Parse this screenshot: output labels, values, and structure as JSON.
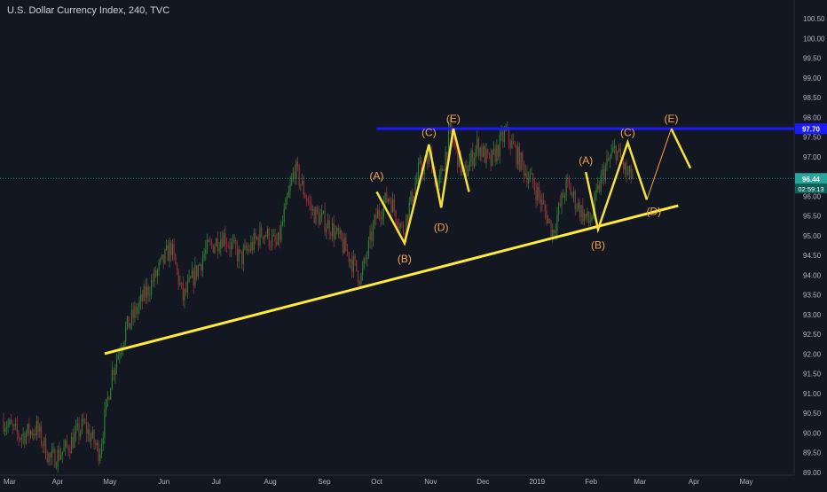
{
  "header": {
    "symbol_title": "U.S. Dollar Currency Index, 240, TVC"
  },
  "colors": {
    "background": "#131722",
    "candle_up": "#2e7d32",
    "candle_down": "#9b2c3a",
    "trendline": "#ffeb3b",
    "resistance": "#1a1aff",
    "wave": "#f5e13b",
    "wave_label": "#f7a24a",
    "current_price_line": "#26a69a",
    "axis_text": "#b2b5be"
  },
  "chart_data": {
    "type": "candlestick",
    "y_axis": {
      "ticks": [
        "89.00",
        "89.50",
        "90.00",
        "90.50",
        "91.00",
        "91.50",
        "92.00",
        "92.50",
        "93.00",
        "93.50",
        "94.00",
        "94.50",
        "95.00",
        "95.50",
        "96.00",
        "96.50",
        "97.00",
        "97.50",
        "98.00",
        "98.50",
        "99.00",
        "99.50",
        "100.00",
        "100.50"
      ],
      "ylim": [
        88.7,
        100.9
      ]
    },
    "x_axis": {
      "ticks": [
        "Mar",
        "Apr",
        "May",
        "Jun",
        "Jul",
        "Aug",
        "Sep",
        "Oct",
        "Nov",
        "Dec",
        "2019",
        "Feb",
        "Mar",
        "Apr",
        "May"
      ]
    },
    "price_path": [
      {
        "d": "2018-03-01",
        "v": 90.3
      },
      {
        "d": "2018-03-10",
        "v": 89.9
      },
      {
        "d": "2018-03-20",
        "v": 90.1
      },
      {
        "d": "2018-03-28",
        "v": 89.3
      },
      {
        "d": "2018-04-06",
        "v": 89.6
      },
      {
        "d": "2018-04-16",
        "v": 90.2
      },
      {
        "d": "2018-04-25",
        "v": 89.5
      },
      {
        "d": "2018-05-02",
        "v": 91.5
      },
      {
        "d": "2018-05-10",
        "v": 92.6
      },
      {
        "d": "2018-05-25",
        "v": 93.8
      },
      {
        "d": "2018-06-05",
        "v": 94.7
      },
      {
        "d": "2018-06-12",
        "v": 93.4
      },
      {
        "d": "2018-06-25",
        "v": 94.6
      },
      {
        "d": "2018-07-05",
        "v": 95.0
      },
      {
        "d": "2018-07-15",
        "v": 94.4
      },
      {
        "d": "2018-07-28",
        "v": 95.1
      },
      {
        "d": "2018-08-05",
        "v": 94.7
      },
      {
        "d": "2018-08-15",
        "v": 96.7
      },
      {
        "d": "2018-08-25",
        "v": 95.6
      },
      {
        "d": "2018-09-05",
        "v": 95.2
      },
      {
        "d": "2018-09-15",
        "v": 94.5
      },
      {
        "d": "2018-09-22",
        "v": 93.9
      },
      {
        "d": "2018-10-01",
        "v": 95.5
      },
      {
        "d": "2018-10-08",
        "v": 96.0
      },
      {
        "d": "2018-10-16",
        "v": 95.1
      },
      {
        "d": "2018-10-25",
        "v": 96.6
      },
      {
        "d": "2018-11-01",
        "v": 97.0
      },
      {
        "d": "2018-11-05",
        "v": 96.1
      },
      {
        "d": "2018-11-12",
        "v": 97.6
      },
      {
        "d": "2018-11-20",
        "v": 96.5
      },
      {
        "d": "2018-11-28",
        "v": 97.3
      },
      {
        "d": "2018-12-05",
        "v": 96.8
      },
      {
        "d": "2018-12-14",
        "v": 97.6
      },
      {
        "d": "2018-12-22",
        "v": 96.9
      },
      {
        "d": "2019-01-01",
        "v": 96.1
      },
      {
        "d": "2019-01-10",
        "v": 95.1
      },
      {
        "d": "2019-01-18",
        "v": 96.3
      },
      {
        "d": "2019-01-25",
        "v": 95.7
      },
      {
        "d": "2019-01-31",
        "v": 95.3
      },
      {
        "d": "2019-02-08",
        "v": 96.6
      },
      {
        "d": "2019-02-15",
        "v": 97.2
      },
      {
        "d": "2019-02-22",
        "v": 96.5
      }
    ],
    "current_price": {
      "value": 96.44,
      "label": "96.44",
      "countdown": "02:59:13"
    },
    "resistance_line": {
      "value": 97.7,
      "label": "97.70",
      "from": "2018-10-01",
      "to": "2019-05-21"
    },
    "trendline": {
      "from": {
        "d": "2018-04-28",
        "v": 92.0
      },
      "to": {
        "d": "2019-03-23",
        "v": 95.75
      }
    },
    "waves": [
      {
        "points": [
          {
            "d": "2018-10-01",
            "v": 96.1
          },
          {
            "d": "2018-10-17",
            "v": 94.8
          },
          {
            "d": "2018-10-31",
            "v": 97.3
          },
          {
            "d": "2018-11-07",
            "v": 95.7
          },
          {
            "d": "2018-11-14",
            "v": 97.7
          },
          {
            "d": "2018-11-23",
            "v": 96.1
          }
        ],
        "labels": [
          {
            "text": "(A)",
            "d": "2018-10-01",
            "v": 96.5
          },
          {
            "text": "(B)",
            "d": "2018-10-17",
            "v": 94.4
          },
          {
            "text": "(C)",
            "d": "2018-10-31",
            "v": 97.6
          },
          {
            "text": "(D)",
            "d": "2018-11-07",
            "v": 95.2
          },
          {
            "text": "(E)",
            "d": "2018-11-14",
            "v": 97.95
          }
        ]
      },
      {
        "points": [
          {
            "d": "2019-01-29",
            "v": 96.6
          },
          {
            "d": "2019-02-05",
            "v": 95.15
          },
          {
            "d": "2019-02-22",
            "v": 97.35
          },
          {
            "d": "2019-03-05",
            "v": 95.9
          }
        ],
        "labels": [
          {
            "text": "(A)",
            "d": "2019-01-29",
            "v": 96.9
          },
          {
            "text": "(B)",
            "d": "2019-02-05",
            "v": 94.75
          },
          {
            "text": "(C)",
            "d": "2019-02-22",
            "v": 97.6
          },
          {
            "text": "(D)",
            "d": "2019-03-09",
            "v": 95.6
          }
        ]
      },
      {
        "points": [
          {
            "d": "2019-03-19",
            "v": 97.7
          },
          {
            "d": "2019-03-30",
            "v": 96.7
          }
        ],
        "labels": [
          {
            "text": "(E)",
            "d": "2019-03-19",
            "v": 97.95
          }
        ]
      }
    ],
    "projection": [
      {
        "d": "2019-03-05",
        "v": 95.9
      },
      {
        "d": "2019-03-19",
        "v": 97.7
      }
    ]
  }
}
